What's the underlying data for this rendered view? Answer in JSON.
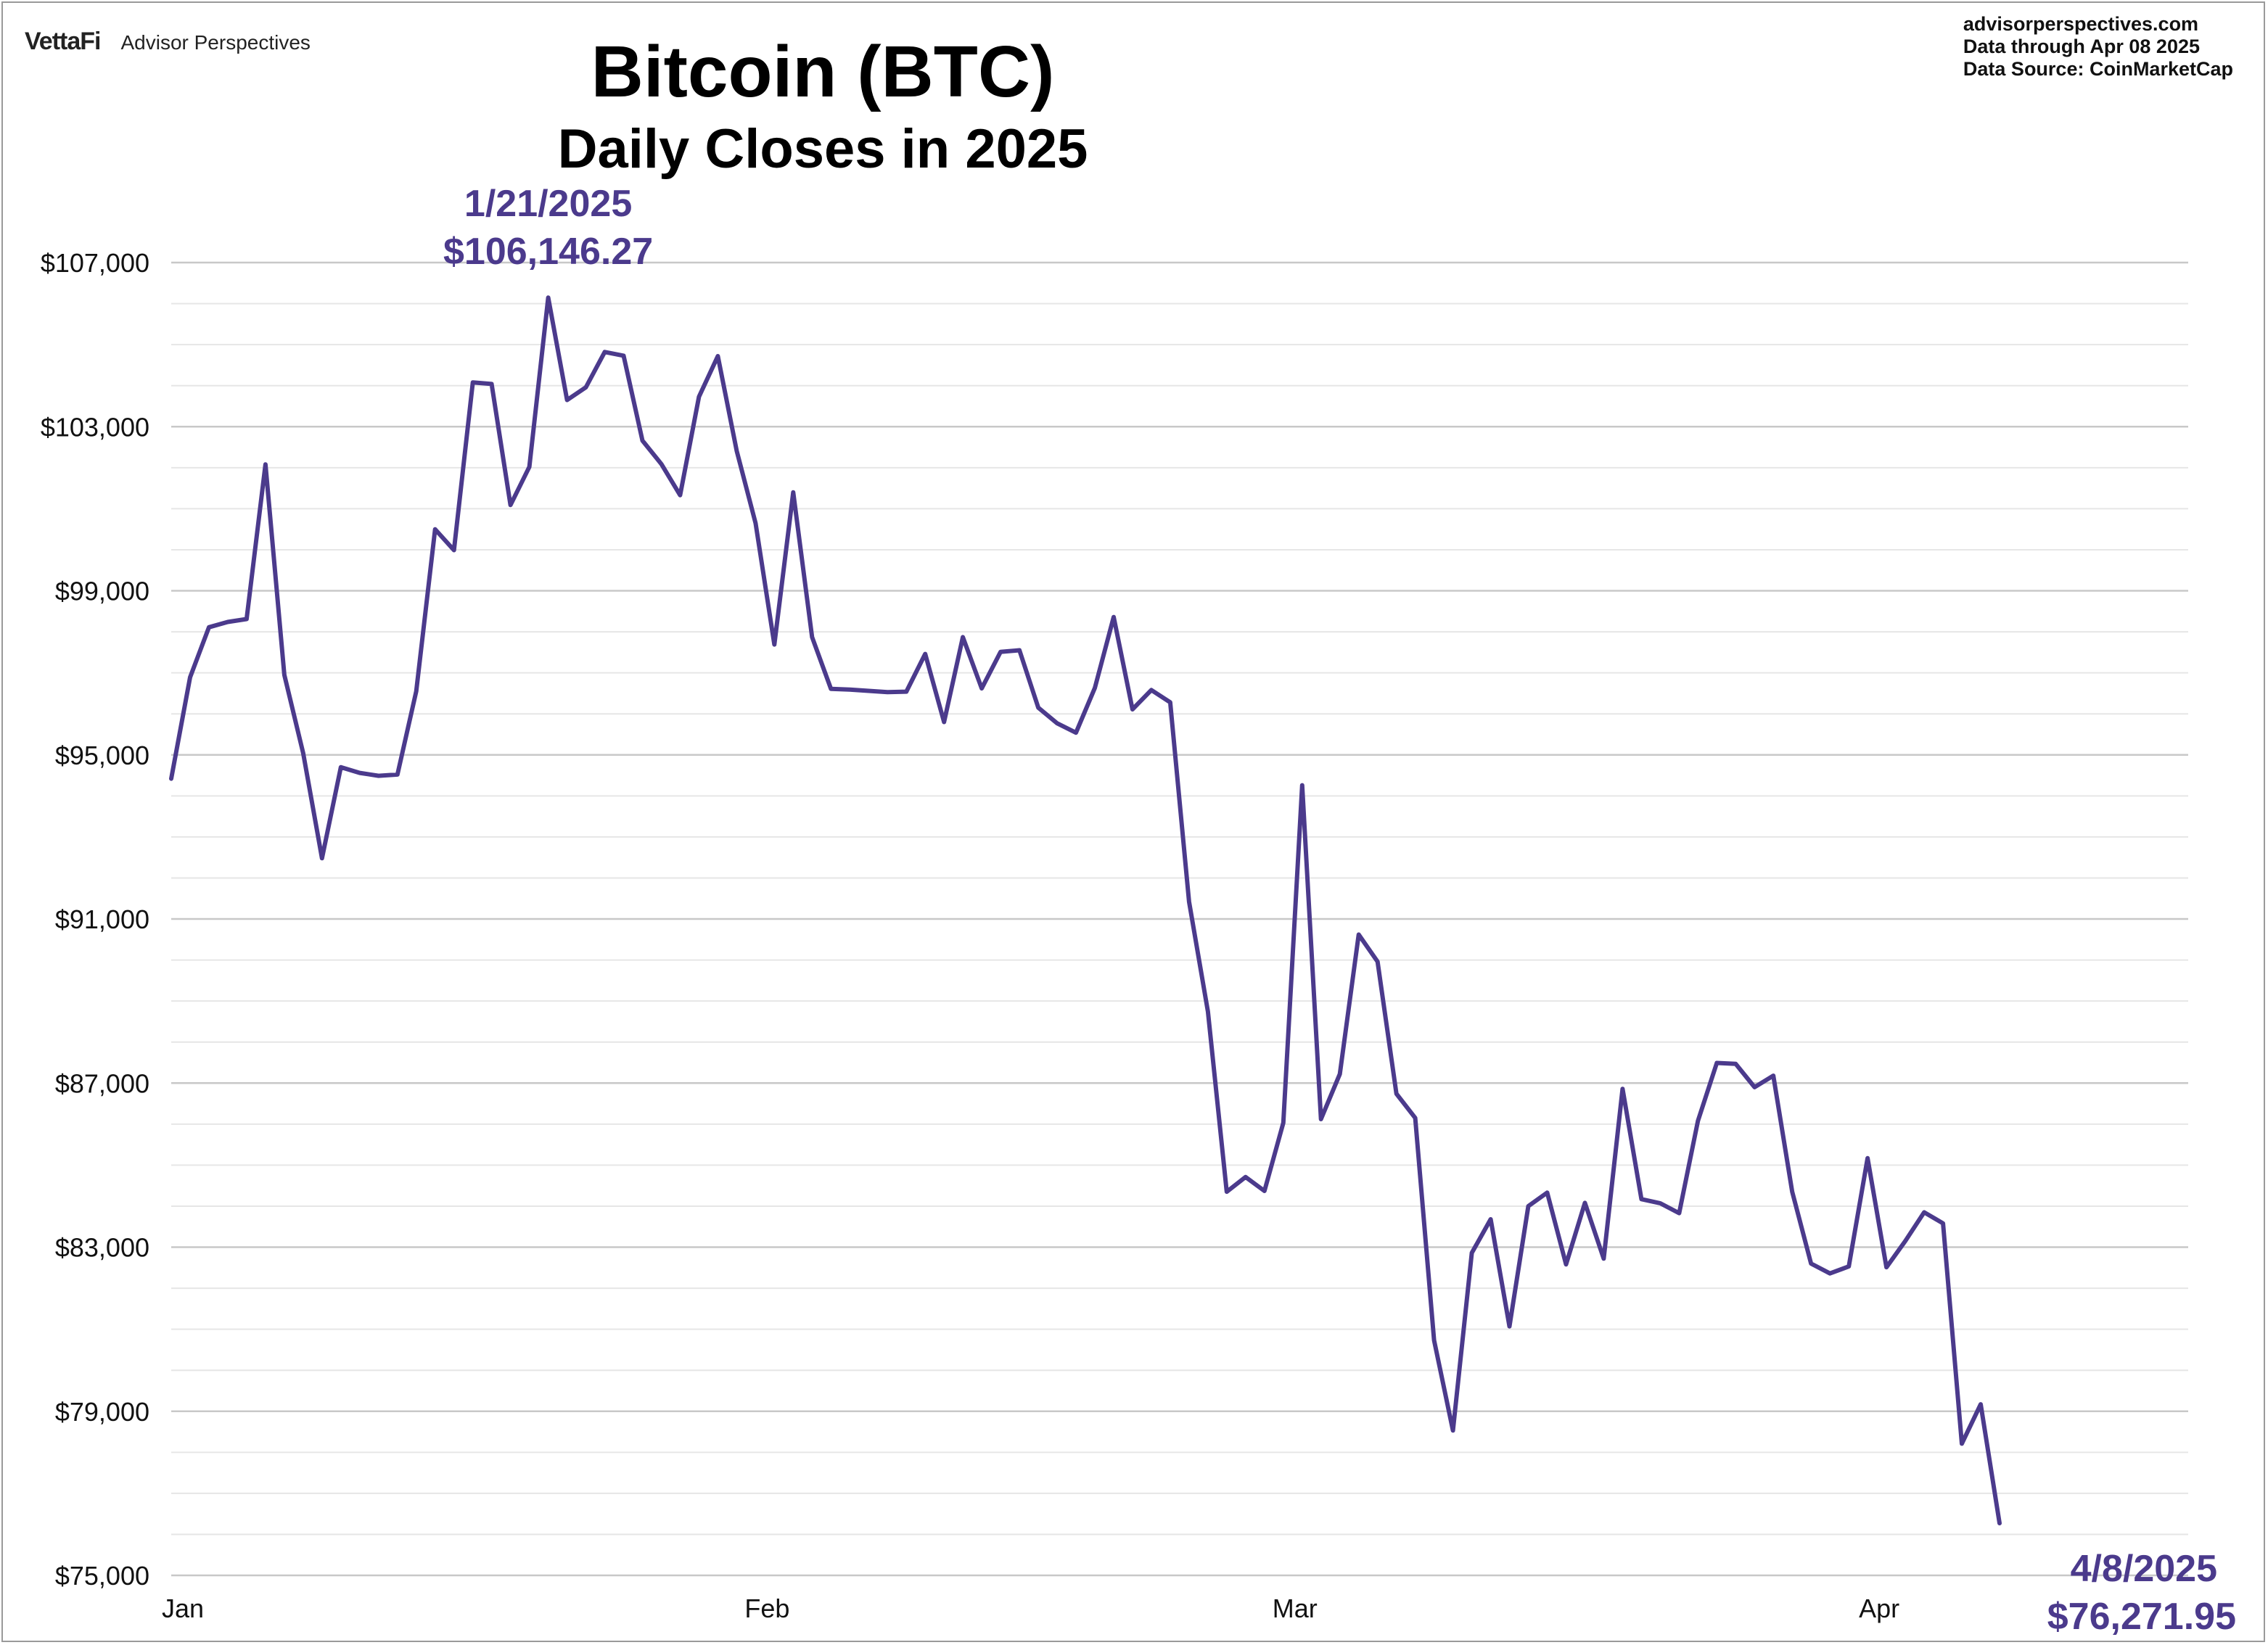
{
  "brand": {
    "logo": "VettaFi",
    "name": "Advisor Perspectives"
  },
  "source": {
    "line1": "advisorperspectives.com",
    "line2": "Data through  Apr 08 2025",
    "line3": "Data Source:  CoinMarketCap"
  },
  "chart_data": {
    "type": "line",
    "title": "Bitcoin (BTC)",
    "subtitle": "Daily Closes in 2025",
    "color": "#4b3a8c",
    "ylim": [
      75000,
      107500
    ],
    "yticks": [
      75000,
      79000,
      83000,
      87000,
      91000,
      95000,
      99000,
      103000,
      107000
    ],
    "ytick_labels": [
      "$75,000",
      "$79,000",
      "$83,000",
      "$87,000",
      "$91,000",
      "$95,000",
      "$99,000",
      "$103,000",
      "$107,000"
    ],
    "xlim": [
      "2025-01-01",
      "2025-04-08"
    ],
    "xticks": [
      "2025-01-01",
      "2025-02-01",
      "2025-03-01",
      "2025-04-01"
    ],
    "xtick_labels": [
      "Jan",
      "Feb",
      "Mar",
      "Apr"
    ],
    "grid": true,
    "x": [
      "2025-01-01",
      "2025-01-02",
      "2025-01-03",
      "2025-01-04",
      "2025-01-05",
      "2025-01-06",
      "2025-01-07",
      "2025-01-08",
      "2025-01-09",
      "2025-01-10",
      "2025-01-11",
      "2025-01-12",
      "2025-01-13",
      "2025-01-14",
      "2025-01-15",
      "2025-01-16",
      "2025-01-17",
      "2025-01-18",
      "2025-01-19",
      "2025-01-20",
      "2025-01-21",
      "2025-01-22",
      "2025-01-23",
      "2025-01-24",
      "2025-01-25",
      "2025-01-26",
      "2025-01-27",
      "2025-01-28",
      "2025-01-29",
      "2025-01-30",
      "2025-01-31",
      "2025-02-01",
      "2025-02-02",
      "2025-02-03",
      "2025-02-04",
      "2025-02-05",
      "2025-02-06",
      "2025-02-07",
      "2025-02-08",
      "2025-02-09",
      "2025-02-10",
      "2025-02-11",
      "2025-02-12",
      "2025-02-13",
      "2025-02-14",
      "2025-02-15",
      "2025-02-16",
      "2025-02-17",
      "2025-02-18",
      "2025-02-19",
      "2025-02-20",
      "2025-02-21",
      "2025-02-22",
      "2025-02-23",
      "2025-02-24",
      "2025-02-25",
      "2025-02-26",
      "2025-02-27",
      "2025-02-28",
      "2025-03-01",
      "2025-03-02",
      "2025-03-03",
      "2025-03-04",
      "2025-03-05",
      "2025-03-06",
      "2025-03-07",
      "2025-03-08",
      "2025-03-09",
      "2025-03-10",
      "2025-03-11",
      "2025-03-12",
      "2025-03-13",
      "2025-03-14",
      "2025-03-15",
      "2025-03-16",
      "2025-03-17",
      "2025-03-18",
      "2025-03-19",
      "2025-03-20",
      "2025-03-21",
      "2025-03-22",
      "2025-03-23",
      "2025-03-24",
      "2025-03-25",
      "2025-03-26",
      "2025-03-27",
      "2025-03-28",
      "2025-03-29",
      "2025-03-30",
      "2025-03-31",
      "2025-04-01",
      "2025-04-02",
      "2025-04-03",
      "2025-04-04",
      "2025-04-05",
      "2025-04-06",
      "2025-04-07",
      "2025-04-08"
    ],
    "series": [
      {
        "values": [
          94420,
          96890,
          98110,
          98240,
          98310,
          102080,
          96950,
          95040,
          92480,
          94700,
          94560,
          94490,
          94520,
          96550,
          100500,
          99990,
          104080,
          104040,
          101090,
          102020,
          106146.27,
          103650,
          103960,
          104820,
          104730,
          102660,
          102090,
          101330,
          103730,
          104720,
          102410,
          100650,
          97690,
          101400,
          97870,
          96610,
          96590,
          96560,
          96530,
          96540,
          97460,
          95800,
          97870,
          96620,
          97510,
          97550,
          96150,
          95770,
          95540,
          96630,
          98360,
          96110,
          96580,
          96280,
          91420,
          88740,
          84350,
          84710,
          84370,
          86030,
          94260,
          86120,
          87220,
          90620,
          89960,
          86740,
          86150,
          80730,
          78530,
          82860,
          83680,
          81070,
          84000,
          84330,
          82580,
          84080,
          82720,
          86860,
          84170,
          84070,
          83830,
          86080,
          87490,
          87470,
          86900,
          87180,
          84350,
          82600,
          82360,
          82530,
          85170,
          82510,
          83150,
          83850,
          83580,
          78210,
          79170,
          76271.95
        ]
      }
    ],
    "annotations": [
      {
        "date": "1/21/2025",
        "value": "$106,146.27",
        "position": "above"
      },
      {
        "date": "4/8/2025",
        "value": "$76,271.95",
        "position": "below"
      }
    ]
  }
}
